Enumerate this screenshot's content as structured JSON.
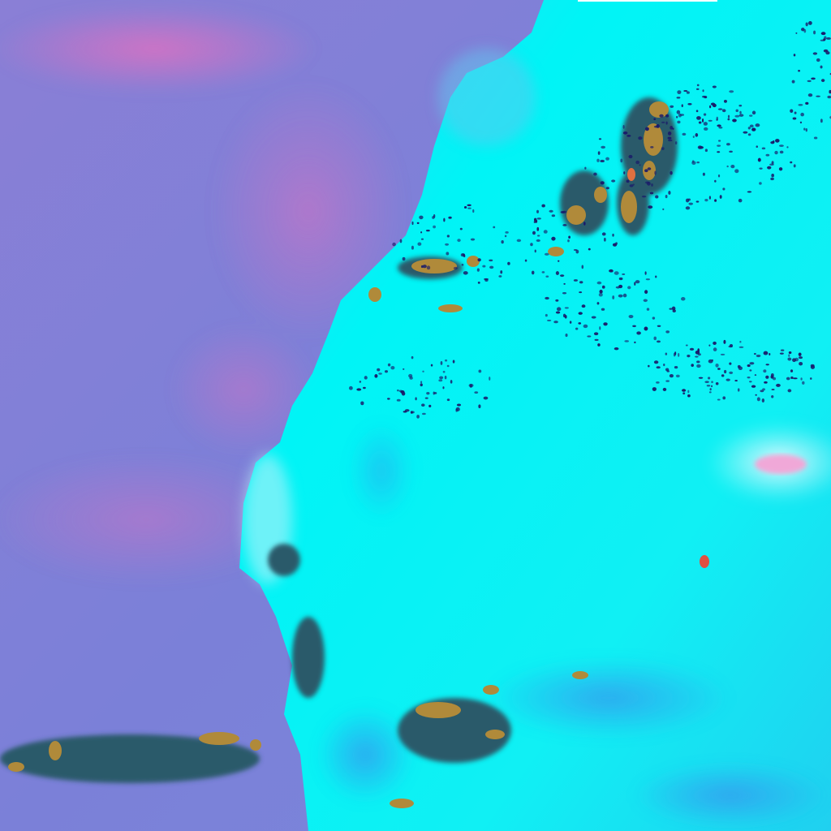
{
  "image": {
    "kind": "false-color satellite scene",
    "colors": {
      "ocean": "#7b80d8",
      "ocean_pink": "#d879c8",
      "cloud": "#00f4f4",
      "cloud_light": "#aef6f8",
      "cloud_blue": "#2fb4f0",
      "storm_core": "#b08a3a",
      "storm_edge": "#2a5a6a",
      "speck": "#1a1a6a",
      "hot_spot": "#f0a8d8"
    },
    "features": [
      "ocean-region",
      "cloud-mass",
      "convective-cells",
      "top-edge-bar"
    ]
  }
}
